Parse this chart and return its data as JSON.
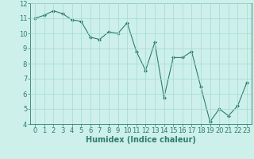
{
  "xlabel": "Humidex (Indice chaleur)",
  "x": [
    0,
    1,
    2,
    3,
    4,
    5,
    6,
    7,
    8,
    9,
    10,
    11,
    12,
    13,
    14,
    15,
    16,
    17,
    18,
    19,
    20,
    21,
    22,
    23
  ],
  "y": [
    11.0,
    11.2,
    11.5,
    11.3,
    10.9,
    10.8,
    9.75,
    9.6,
    10.1,
    10.0,
    10.7,
    8.8,
    7.55,
    9.4,
    5.75,
    8.4,
    8.4,
    8.8,
    6.45,
    4.15,
    5.0,
    4.55,
    5.2,
    6.75
  ],
  "line_color": "#2e7d6e",
  "marker": "D",
  "marker_size": 2,
  "bg_color": "#cef0ea",
  "grid_color": "#a8ddd6",
  "ylim": [
    4,
    12
  ],
  "xlim": [
    -0.5,
    23.5
  ],
  "yticks": [
    4,
    5,
    6,
    7,
    8,
    9,
    10,
    11,
    12
  ],
  "xticks": [
    0,
    1,
    2,
    3,
    4,
    5,
    6,
    7,
    8,
    9,
    10,
    11,
    12,
    13,
    14,
    15,
    16,
    17,
    18,
    19,
    20,
    21,
    22,
    23
  ],
  "tick_fontsize": 6,
  "xlabel_fontsize": 7
}
